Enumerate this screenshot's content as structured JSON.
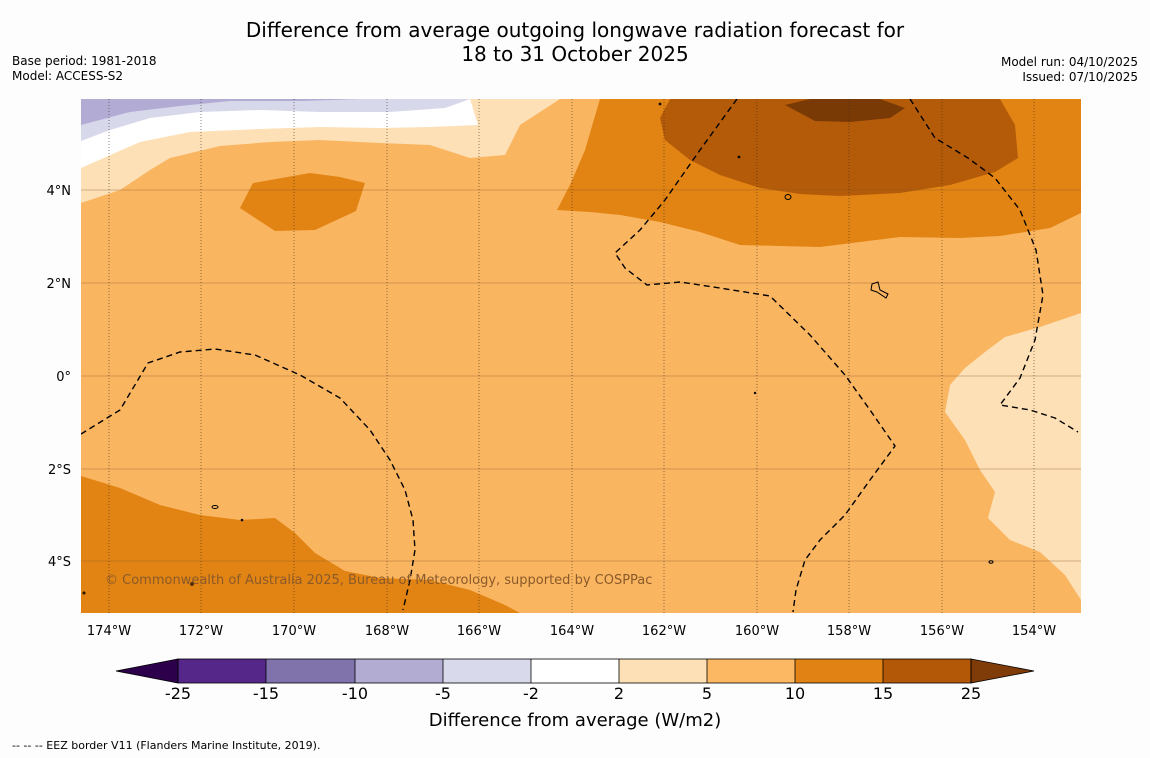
{
  "title": {
    "line1": "Difference from average outgoing longwave radiation forecast for",
    "line2": "18 to 31 October 2025"
  },
  "meta_left": {
    "base_period": "Base period: 1981-2018",
    "model": "Model: ACCESS-S2"
  },
  "meta_right": {
    "model_run": "Model run: 04/10/2025",
    "issued": "Issued: 07/10/2025"
  },
  "map": {
    "lon_ticks": [
      "174°W",
      "172°W",
      "170°W",
      "168°W",
      "166°W",
      "164°W",
      "162°W",
      "160°W",
      "158°W",
      "156°W",
      "154°W"
    ],
    "lat_ticks": [
      "4°N",
      "2°N",
      "0°",
      "2°S",
      "4°S"
    ],
    "copyright": "© Commonwealth of Australia 2025, Bureau of Meteorology, supported by COSPPac",
    "colors": {
      "ocean_base": "#fab561",
      "orange_10_15": "#e28413",
      "orange_15_25": "#b45b0a",
      "brown_25": "#7a3a06",
      "light_2_5": "#fde0b6",
      "white": "#ffffff",
      "lav_m2_m5": "#d8d8eb",
      "lav_m5_m10": "#b2abd3"
    }
  },
  "colorbar": {
    "title": "Difference from average (W/m2)",
    "tick_labels": [
      "-25",
      "-15",
      "-10",
      "-5",
      "-2",
      "2",
      "5",
      "10",
      "15",
      "25"
    ],
    "colors": [
      "#2d004b",
      "#542788",
      "#8073ac",
      "#b2abd2",
      "#d8daeb",
      "#ffffff",
      "#fee0b6",
      "#fdb863",
      "#e08214",
      "#b35806",
      "#7f3b08"
    ]
  },
  "footer": {
    "legend_text": "--  --  -- EEZ border V11 (Flanders Marine Institute, 2019)."
  }
}
